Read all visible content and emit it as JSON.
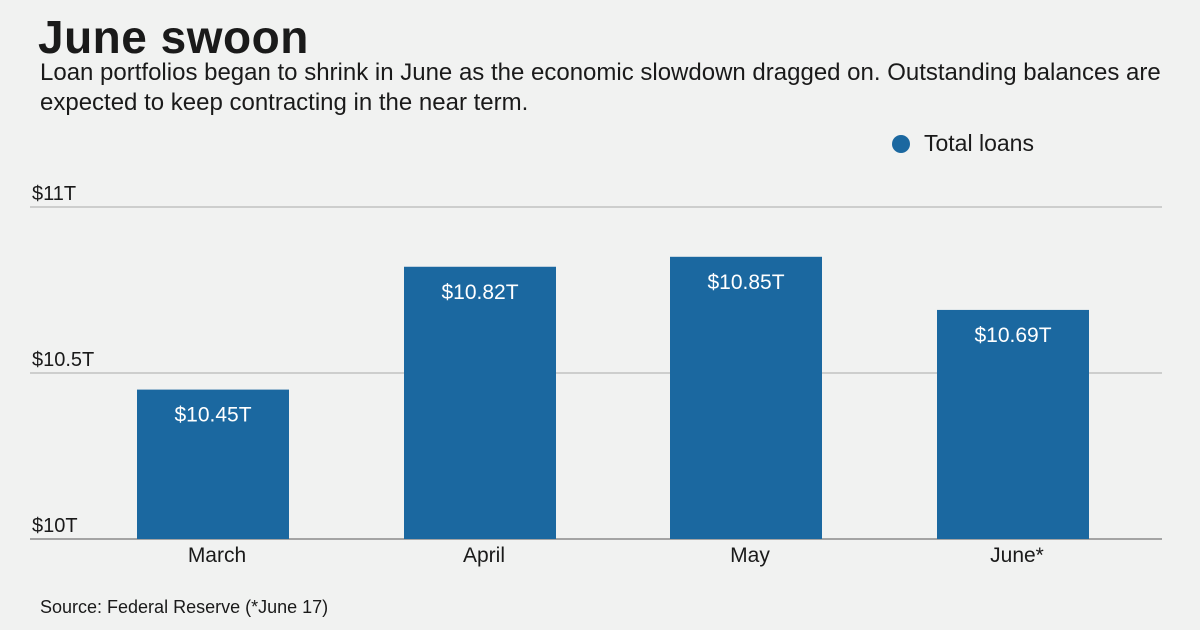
{
  "title": "June swoon",
  "subtitle": "Loan portfolios began to shrink in June as the economic slowdown dragged on. Outstanding balances are expected to keep contracting in the near term.",
  "source": "Source: Federal Reserve (*June 17)",
  "colors": {
    "bar": "#1b68a0",
    "grid": "#b8b8b8",
    "axis": "#8a8a8a"
  },
  "chart_data": {
    "type": "bar",
    "categories": [
      "March",
      "April",
      "May",
      "June*"
    ],
    "series": [
      {
        "name": "Total loans",
        "values": [
          10.45,
          10.82,
          10.85,
          10.69
        ]
      }
    ],
    "data_labels": [
      "$10.45T",
      "$10.82T",
      "$10.85T",
      "$10.69T"
    ],
    "yticks": [
      10,
      10.5,
      11
    ],
    "ytick_labels": [
      "$10T",
      "$10.5T",
      "$11T"
    ],
    "ylim": [
      10,
      11
    ],
    "grid": true,
    "legend_position": "top-right"
  }
}
